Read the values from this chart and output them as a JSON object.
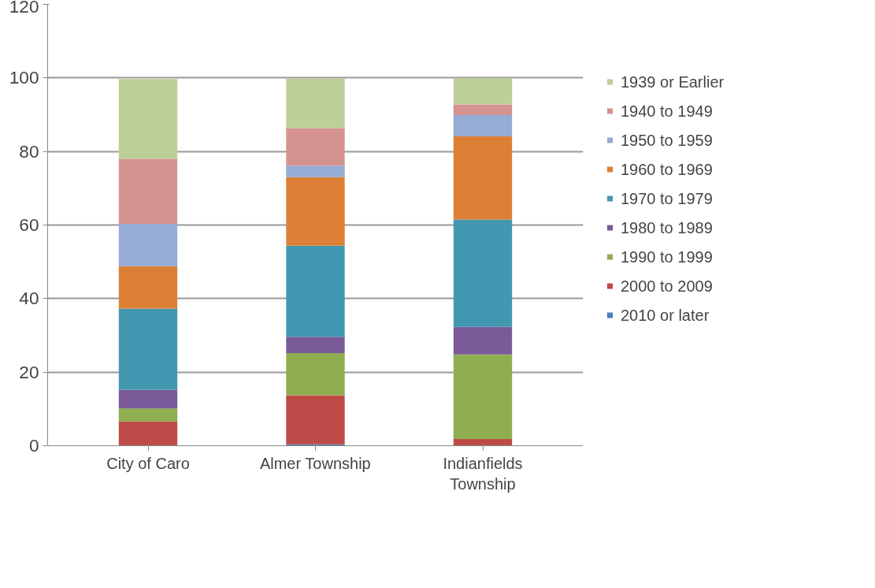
{
  "chart_data": {
    "type": "bar",
    "stacked": true,
    "categories": [
      "City of Caro",
      "Almer Township",
      "Indianfields Township"
    ],
    "series": [
      {
        "name": "2010 or later",
        "color": "#4a7ebb",
        "values": [
          0,
          0.4,
          0
        ]
      },
      {
        "name": "2000 to 2009",
        "color": "#be4b48",
        "values": [
          6.6,
          13.3,
          1.8
        ]
      },
      {
        "name": "1990 to 1999",
        "color": "#8fae4f",
        "values": [
          3.5,
          11.5,
          23.0
        ]
      },
      {
        "name": "1980 to 1989",
        "color": "#7a5a99",
        "values": [
          5.1,
          4.4,
          7.5
        ]
      },
      {
        "name": "1970 to 1979",
        "color": "#4198b0",
        "values": [
          22.1,
          24.8,
          29.2
        ]
      },
      {
        "name": "1960 to 1969",
        "color": "#dd8035",
        "values": [
          11.5,
          18.6,
          22.6
        ]
      },
      {
        "name": "1950 to 1959",
        "color": "#95acd4",
        "values": [
          11.5,
          3.1,
          5.8
        ]
      },
      {
        "name": "1940 to 1949",
        "color": "#d59390",
        "values": [
          17.7,
          10.2,
          2.9
        ]
      },
      {
        "name": "1939 or Earlier",
        "color": "#bccf98",
        "values": [
          21.7,
          13.5,
          7.1
        ]
      }
    ],
    "ylim": [
      0,
      120
    ],
    "yticks": [
      0,
      20,
      40,
      60,
      80,
      100,
      120
    ],
    "grid": "y",
    "legend": "right"
  }
}
